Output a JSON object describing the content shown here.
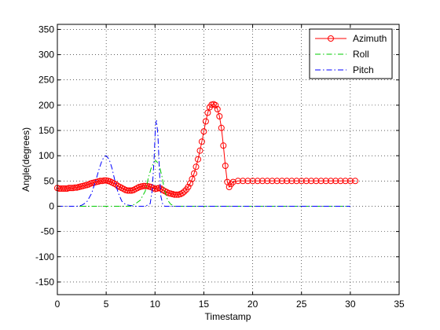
{
  "chart_data": {
    "type": "line",
    "title": "",
    "xlabel": "Timestamp",
    "ylabel": "Angle(degrees)",
    "xlim": [
      0,
      35
    ],
    "ylim": [
      -175,
      360
    ],
    "xticks": [
      0,
      5,
      10,
      15,
      20,
      25,
      30,
      35
    ],
    "yticks": [
      -150,
      -100,
      -50,
      0,
      50,
      100,
      150,
      200,
      250,
      300,
      350
    ],
    "grid": true,
    "legend_position": "top-right",
    "series": [
      {
        "name": "Azimuth",
        "color": "#ff0000",
        "line_style": "solid",
        "marker": "circle",
        "x": [
          0.0,
          0.2,
          0.4,
          0.6,
          0.8,
          1.0,
          1.2,
          1.4,
          1.6,
          1.8,
          2.0,
          2.2,
          2.4,
          2.6,
          2.8,
          3.0,
          3.2,
          3.4,
          3.6,
          3.8,
          4.0,
          4.2,
          4.4,
          4.6,
          4.8,
          5.0,
          5.2,
          5.4,
          5.6,
          5.8,
          6.0,
          6.2,
          6.4,
          6.6,
          6.8,
          7.0,
          7.2,
          7.4,
          7.6,
          7.8,
          8.0,
          8.2,
          8.4,
          8.6,
          8.8,
          9.0,
          9.2,
          9.4,
          9.6,
          9.8,
          10.0,
          10.2,
          10.4,
          10.6,
          10.8,
          11.0,
          11.2,
          11.4,
          11.6,
          11.8,
          12.0,
          12.2,
          12.4,
          12.6,
          12.8,
          13.0,
          13.2,
          13.4,
          13.6,
          13.8,
          14.0,
          14.2,
          14.4,
          14.6,
          14.8,
          15.0,
          15.2,
          15.4,
          15.6,
          15.8,
          16.0,
          16.2,
          16.4,
          16.6,
          16.8,
          17.0,
          17.2,
          17.4,
          17.6,
          17.8,
          18.0,
          18.5,
          19.0,
          19.5,
          20.0,
          20.5,
          21.0,
          21.5,
          22.0,
          22.5,
          23.0,
          23.5,
          24.0,
          24.5,
          25.0,
          25.5,
          26.0,
          26.5,
          27.0,
          27.5,
          28.0,
          28.5,
          29.0,
          29.5,
          30.0,
          30.5
        ],
        "y": [
          36,
          35,
          35,
          35,
          35,
          35,
          36,
          36,
          36,
          37,
          37,
          38,
          39,
          40,
          41,
          42,
          43,
          45,
          46,
          47,
          48,
          49,
          50,
          50,
          51,
          51,
          50,
          49,
          47,
          45,
          43,
          40,
          38,
          36,
          34,
          32,
          31,
          31,
          31,
          32,
          34,
          36,
          38,
          39,
          40,
          40,
          40,
          39,
          38,
          36,
          34,
          35,
          36,
          35,
          32,
          30,
          28,
          26,
          25,
          24,
          23,
          23,
          23,
          24,
          26,
          29,
          33,
          38,
          45,
          54,
          65,
          78,
          93,
          110,
          128,
          148,
          168,
          185,
          196,
          201,
          202,
          200,
          192,
          178,
          155,
          120,
          80,
          48,
          38,
          44,
          48,
          50,
          50,
          50,
          50,
          50,
          50,
          50,
          50,
          50,
          50,
          50,
          50,
          50,
          50,
          50,
          50,
          50,
          50,
          50,
          50,
          50,
          50,
          50,
          50,
          50
        ]
      },
      {
        "name": "Roll",
        "color": "#00cc00",
        "line_style": "dash-dot",
        "marker": "none",
        "x": [
          0,
          2,
          4,
          5,
          6,
          6.5,
          7,
          7.5,
          8,
          8.5,
          9,
          9.3,
          9.6,
          9.9,
          10.1,
          10.4,
          10.7,
          11.0,
          11.3,
          11.6,
          12,
          13,
          20,
          30
        ],
        "y": [
          0,
          0,
          0,
          0,
          0,
          0,
          0,
          0,
          5,
          12,
          30,
          55,
          75,
          88,
          90,
          83,
          60,
          30,
          12,
          4,
          0,
          0,
          0,
          0
        ]
      },
      {
        "name": "Pitch",
        "color": "#0000ff",
        "line_style": "dash-dot",
        "marker": "none",
        "x": [
          0,
          2,
          2.5,
          3,
          3.5,
          4.0,
          4.3,
          4.6,
          4.9,
          5.0,
          5.3,
          5.6,
          5.9,
          6.2,
          6.6,
          7.0,
          8,
          9,
          9.5,
          9.7,
          9.9,
          10.05,
          10.15,
          10.3,
          10.45,
          10.6,
          10.8,
          11,
          12,
          15,
          20,
          30
        ],
        "y": [
          0,
          0,
          2,
          8,
          25,
          55,
          75,
          92,
          99,
          100,
          93,
          75,
          50,
          28,
          10,
          3,
          0,
          0,
          5,
          30,
          90,
          160,
          170,
          140,
          70,
          20,
          3,
          0,
          0,
          0,
          0,
          0
        ]
      }
    ]
  }
}
